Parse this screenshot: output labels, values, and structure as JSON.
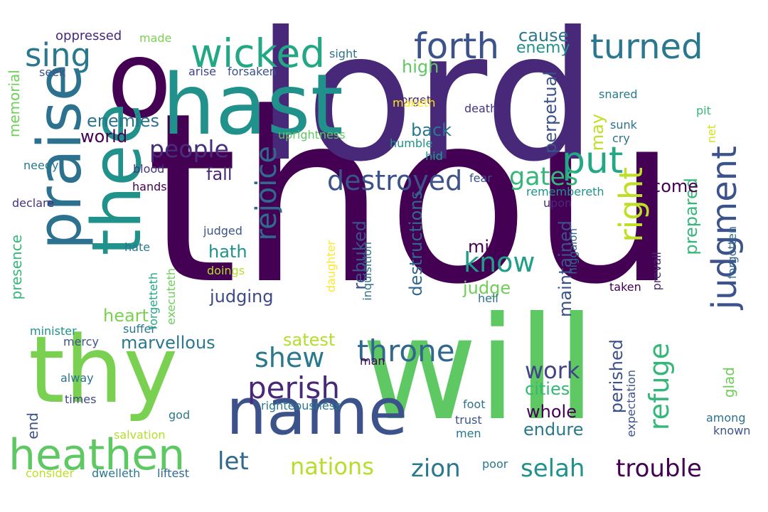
{
  "words": [
    {
      "text": "thou",
      "color": "#440154"
    },
    {
      "text": "lord",
      "color": "#482878"
    },
    {
      "text": "will",
      "color": "#5ec962"
    },
    {
      "text": "o",
      "color": "#440154"
    },
    {
      "text": "hast",
      "color": "#21918c"
    },
    {
      "text": "thy",
      "color": "#7ad151"
    },
    {
      "text": "thee",
      "color": "#21918c"
    },
    {
      "text": "name",
      "color": "#3b528b"
    },
    {
      "text": "praise",
      "color": "#2c728e"
    },
    {
      "text": "heathen",
      "color": "#5ec962"
    },
    {
      "text": "wicked",
      "color": "#22a884"
    },
    {
      "text": "forth",
      "color": "#3b528b"
    },
    {
      "text": "turned",
      "color": "#2a788e"
    },
    {
      "text": "put",
      "color": "#22a884"
    },
    {
      "text": "sing",
      "color": "#2a788e"
    },
    {
      "text": "judgment",
      "color": "#3b528b"
    },
    {
      "text": "rejoice",
      "color": "#31688e"
    },
    {
      "text": "right",
      "color": "#bddf26"
    },
    {
      "text": "destroyed",
      "color": "#3b528b"
    },
    {
      "text": "throne",
      "color": "#31688e"
    },
    {
      "text": "perish",
      "color": "#482878"
    },
    {
      "text": "shew",
      "color": "#2a788e"
    },
    {
      "text": "refuge",
      "color": "#35b779"
    },
    {
      "text": "know",
      "color": "#1f9e89"
    },
    {
      "text": "people",
      "color": "#472d7b"
    },
    {
      "text": "gates",
      "color": "#35b779"
    },
    {
      "text": "work",
      "color": "#414487"
    },
    {
      "text": "trouble",
      "color": "#440154"
    },
    {
      "text": "selah",
      "color": "#21918c"
    },
    {
      "text": "zion",
      "color": "#2a788e"
    },
    {
      "text": "nations",
      "color": "#b5de2b"
    },
    {
      "text": "let",
      "color": "#31688e"
    },
    {
      "text": "cities",
      "color": "#35b779"
    },
    {
      "text": "whole",
      "color": "#440154"
    },
    {
      "text": "endure",
      "color": "#2a788e"
    },
    {
      "text": "marvellous",
      "color": "#2a788e"
    },
    {
      "text": "judging",
      "color": "#3e4989"
    },
    {
      "text": "satest",
      "color": "#b5de2b"
    },
    {
      "text": "heart",
      "color": "#7ad151"
    },
    {
      "text": "hath",
      "color": "#21918c"
    },
    {
      "text": "fall",
      "color": "#482878"
    },
    {
      "text": "mine",
      "color": "#440154"
    },
    {
      "text": "judge",
      "color": "#6ece58"
    },
    {
      "text": "rebuked",
      "color": "#3b528b"
    },
    {
      "text": "destructions",
      "color": "#31688e"
    },
    {
      "text": "maintained",
      "color": "#3b528b"
    },
    {
      "text": "prepared",
      "color": "#35b779"
    },
    {
      "text": "perished",
      "color": "#3b528b"
    },
    {
      "text": "come",
      "color": "#440154"
    },
    {
      "text": "perpetual",
      "color": "#3b528b"
    },
    {
      "text": "may",
      "color": "#bddf26"
    },
    {
      "text": "back",
      "color": "#2a788e"
    },
    {
      "text": "high",
      "color": "#5ec962"
    },
    {
      "text": "cause",
      "color": "#2a788e"
    },
    {
      "text": "enemy",
      "color": "#21918c"
    },
    {
      "text": "enemies",
      "color": "#2c728e"
    },
    {
      "text": "world",
      "color": "#440154"
    },
    {
      "text": "memorial",
      "color": "#6ece58"
    },
    {
      "text": "presence",
      "color": "#35b779"
    },
    {
      "text": "end",
      "color": "#3b528b"
    },
    {
      "text": "glad",
      "color": "#6ece58"
    },
    {
      "text": "oppressed",
      "color": "#482878"
    },
    {
      "text": "made",
      "color": "#7ad151"
    },
    {
      "text": "seek",
      "color": "#3b528b"
    },
    {
      "text": "arise",
      "color": "#414487"
    },
    {
      "text": "forsaken",
      "color": "#3b528b"
    },
    {
      "text": "sight",
      "color": "#2c728e"
    },
    {
      "text": "forget",
      "color": "#482878"
    },
    {
      "text": "maketh",
      "color": "#fde725"
    },
    {
      "text": "uprightness",
      "color": "#5ec962"
    },
    {
      "text": "humble",
      "color": "#21918c"
    },
    {
      "text": "hid",
      "color": "#1f9e89"
    },
    {
      "text": "death",
      "color": "#46337e"
    },
    {
      "text": "snared",
      "color": "#2a788e"
    },
    {
      "text": "sunk",
      "color": "#2c728e"
    },
    {
      "text": "cry",
      "color": "#2c728e"
    },
    {
      "text": "pit",
      "color": "#35b779"
    },
    {
      "text": "net",
      "color": "#d2e21b"
    },
    {
      "text": "needy",
      "color": "#2a788e"
    },
    {
      "text": "blood",
      "color": "#46337e"
    },
    {
      "text": "fear",
      "color": "#3b528b"
    },
    {
      "text": "hands",
      "color": "#440154"
    },
    {
      "text": "declare",
      "color": "#46337e"
    },
    {
      "text": "remembereth",
      "color": "#21918c"
    },
    {
      "text": "upon",
      "color": "#482878"
    },
    {
      "text": "forgotten",
      "color": "#31688e"
    },
    {
      "text": "judged",
      "color": "#3b528b"
    },
    {
      "text": "higgaion",
      "color": "#31688e"
    },
    {
      "text": "prevail",
      "color": "#482878"
    },
    {
      "text": "hate",
      "color": "#2a788e"
    },
    {
      "text": "doings",
      "color": "#b5de2b"
    },
    {
      "text": "executeth",
      "color": "#6ece58"
    },
    {
      "text": "forgetteth",
      "color": "#22a884"
    },
    {
      "text": "daughter",
      "color": "#fde725"
    },
    {
      "text": "inquisition",
      "color": "#2c728e"
    },
    {
      "text": "taken",
      "color": "#440154"
    },
    {
      "text": "hell",
      "color": "#2c728e"
    },
    {
      "text": "expectation",
      "color": "#3b528b"
    },
    {
      "text": "minister",
      "color": "#21918c"
    },
    {
      "text": "suffer",
      "color": "#2a788e"
    },
    {
      "text": "mercy",
      "color": "#3b528b"
    },
    {
      "text": "man",
      "color": "#440154"
    },
    {
      "text": "alway",
      "color": "#2c728e"
    },
    {
      "text": "times",
      "color": "#3e4989"
    },
    {
      "text": "righteousness",
      "color": "#2a788e"
    },
    {
      "text": "foot",
      "color": "#2c728e"
    },
    {
      "text": "trust",
      "color": "#3b528b"
    },
    {
      "text": "men",
      "color": "#2a788e"
    },
    {
      "text": "among",
      "color": "#2c728e"
    },
    {
      "text": "known",
      "color": "#3b528b"
    },
    {
      "text": "god",
      "color": "#2a788e"
    },
    {
      "text": "salvation",
      "color": "#b5de2b"
    },
    {
      "text": "poor",
      "color": "#2a788e"
    },
    {
      "text": "consider",
      "color": "#bddf26"
    },
    {
      "text": "dwelleth",
      "color": "#2a788e"
    },
    {
      "text": "liftest",
      "color": "#31688e"
    }
  ]
}
